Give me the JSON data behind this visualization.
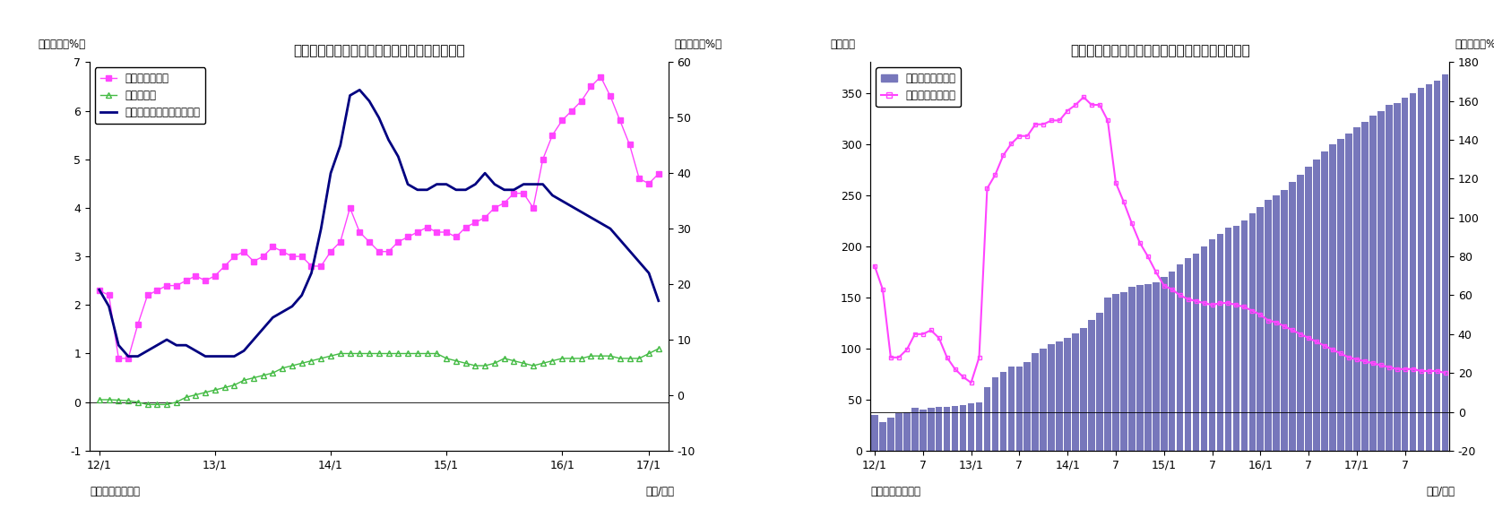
{
  "fig7": {
    "title": "（図表７）　マネタリーベース伸び率（平残）",
    "ylabel_left": "（前年比、%）",
    "ylabel_right": "（前年比、%）",
    "xlabel": "（年/月）",
    "source": "（資料）日本銀行",
    "ylim_left": [
      -1,
      7
    ],
    "ylim_right": [
      -10,
      60
    ],
    "yticks_left": [
      -1,
      0,
      1,
      2,
      3,
      4,
      5,
      6,
      7
    ],
    "yticks_right": [
      -10,
      0,
      10,
      20,
      30,
      40,
      50,
      60
    ],
    "xtick_labels": [
      "12/1",
      "13/1",
      "14/1",
      "15/1",
      "16/1",
      "17/1"
    ],
    "xtick_positions": [
      0,
      12,
      24,
      36,
      48,
      57
    ],
    "series_nikkei": {
      "label": "日銀券発行残高",
      "color": "#ff44ff",
      "marker": "s",
      "values": [
        2.3,
        2.2,
        0.9,
        0.9,
        1.6,
        2.2,
        2.3,
        2.4,
        2.4,
        2.5,
        2.6,
        2.5,
        2.6,
        2.8,
        3.0,
        3.1,
        2.9,
        3.0,
        3.2,
        3.1,
        3.0,
        3.0,
        2.8,
        2.8,
        3.1,
        3.3,
        4.0,
        3.5,
        3.3,
        3.1,
        3.1,
        3.3,
        3.4,
        3.5,
        3.6,
        3.5,
        3.5,
        3.4,
        3.6,
        3.7,
        3.8,
        4.0,
        4.1,
        4.3,
        4.3,
        4.0,
        5.0,
        5.5,
        5.8,
        6.0,
        6.2,
        6.5,
        6.7,
        6.3,
        5.8,
        5.3,
        4.6,
        4.5,
        4.7
      ]
    },
    "series_cash": {
      "label": "貨幣流通高",
      "color": "#44bb44",
      "marker": "^",
      "values": [
        0.05,
        0.05,
        0.04,
        0.03,
        0.0,
        -0.05,
        -0.05,
        -0.05,
        0.0,
        0.1,
        0.15,
        0.2,
        0.25,
        0.3,
        0.35,
        0.45,
        0.5,
        0.55,
        0.6,
        0.7,
        0.75,
        0.8,
        0.85,
        0.9,
        0.95,
        1.0,
        1.0,
        1.0,
        1.0,
        1.0,
        1.0,
        1.0,
        1.0,
        1.0,
        1.0,
        1.0,
        0.9,
        0.85,
        0.8,
        0.75,
        0.75,
        0.8,
        0.9,
        0.85,
        0.8,
        0.75,
        0.8,
        0.85,
        0.9,
        0.9,
        0.9,
        0.95,
        0.95,
        0.95,
        0.9,
        0.9,
        0.9,
        1.0,
        1.1
      ]
    },
    "series_monetary": {
      "label": "マネタリーベース（右軸）",
      "color": "#000080",
      "values": [
        19,
        16,
        9,
        7,
        7,
        8,
        9,
        10,
        9,
        9,
        8,
        7,
        7,
        7,
        7,
        8,
        10,
        12,
        14,
        15,
        16,
        18,
        22,
        30,
        40,
        45,
        54,
        55,
        53,
        50,
        46,
        43,
        38,
        37,
        37,
        38,
        38,
        37,
        37,
        38,
        40,
        38,
        37,
        37,
        38,
        38,
        38,
        36,
        35,
        34,
        33,
        32,
        31,
        30,
        28,
        26,
        24,
        22,
        17
      ]
    }
  },
  "fig8": {
    "title": "（図表８）　日銀当座預金残高（平残）と伸び率",
    "ylabel_left": "（兆円）",
    "ylabel_right": "（前年比、%）",
    "xlabel": "（年/月）",
    "source": "（資料）日本銀行",
    "ylim_left": [
      0,
      380
    ],
    "ylim_right": [
      -20,
      180
    ],
    "yticks_left": [
      0,
      50,
      100,
      150,
      200,
      250,
      300,
      350
    ],
    "yticks_right": [
      -20,
      0,
      20,
      40,
      60,
      80,
      100,
      120,
      140,
      160,
      180
    ],
    "xtick_labels": [
      "12/1",
      "7",
      "13/1",
      "7",
      "14/1",
      "7",
      "15/1",
      "7",
      "16/1",
      "7",
      "17/1",
      "7"
    ],
    "xtick_positions": [
      0,
      6,
      12,
      18,
      24,
      30,
      36,
      42,
      48,
      54,
      60,
      66
    ],
    "bar_color": "#7777bb",
    "line_color": "#ff44ff",
    "bar_values": [
      35,
      28,
      32,
      37,
      38,
      42,
      40,
      42,
      43,
      43,
      44,
      45,
      46,
      47,
      62,
      72,
      77,
      82,
      82,
      87,
      95,
      100,
      104,
      107,
      110,
      115,
      120,
      128,
      135,
      150,
      153,
      155,
      160,
      162,
      163,
      165,
      170,
      175,
      182,
      188,
      193,
      200,
      207,
      212,
      218,
      220,
      225,
      232,
      238,
      245,
      250,
      255,
      263,
      270,
      278,
      285,
      293,
      300,
      305,
      310,
      316,
      322,
      328,
      332,
      338,
      340,
      345,
      350,
      355,
      358,
      362,
      368
    ],
    "line_values": [
      75,
      63,
      28,
      28,
      32,
      40,
      40,
      42,
      38,
      28,
      22,
      18,
      15,
      28,
      115,
      122,
      132,
      138,
      142,
      142,
      148,
      148,
      150,
      150,
      155,
      158,
      162,
      158,
      158,
      150,
      118,
      108,
      97,
      87,
      80,
      72,
      65,
      63,
      60,
      58,
      57,
      56,
      55,
      56,
      56,
      55,
      54,
      52,
      50,
      47,
      46,
      44,
      42,
      40,
      38,
      36,
      34,
      32,
      30,
      28,
      27,
      26,
      25,
      24,
      23,
      22,
      22,
      22,
      21,
      21,
      21,
      20
    ]
  }
}
